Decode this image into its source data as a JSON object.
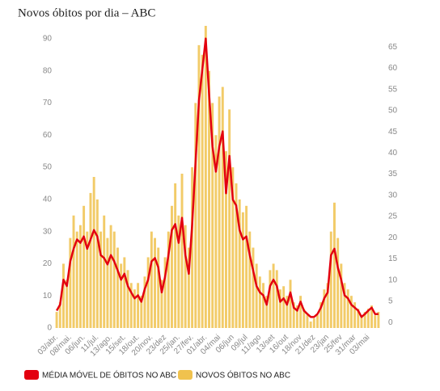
{
  "chart_data": {
    "type": "bar_line",
    "title": "Novos óbitos por dia – ABC",
    "categories": [
      "03/abr.",
      null,
      null,
      null,
      "08/mai.",
      null,
      null,
      null,
      "06/jun.",
      null,
      null,
      null,
      "11/jul.",
      null,
      null,
      null,
      "13/ago.",
      null,
      null,
      null,
      "15/set.",
      null,
      null,
      null,
      "18/out.",
      null,
      null,
      null,
      "20/nov.",
      null,
      null,
      null,
      "23/dez",
      null,
      null,
      null,
      "25/jan.",
      null,
      null,
      null,
      "27/fev.",
      null,
      null,
      null,
      "01/abr.",
      null,
      null,
      null,
      "04/mai",
      null,
      null,
      null,
      "06/jun",
      null,
      null,
      null,
      "09/jul",
      null,
      null,
      null,
      "11/ago",
      null,
      null,
      null,
      "13/set",
      null,
      null,
      null,
      "16/out",
      null,
      null,
      null,
      "18/nov",
      null,
      null,
      null,
      "21/dez",
      null,
      null,
      null,
      "23/jan",
      null,
      null,
      null,
      "25/fev",
      null,
      null,
      null,
      "31/mar",
      null,
      null,
      null,
      "03/mai",
      null,
      null,
      null
    ],
    "series": [
      {
        "name": "MÉDIA MÓVEL DE ÓBITOS NO ABC",
        "color": "#e3000f",
        "axis": "y2",
        "values": [
          2.8,
          4.2,
          10.1,
          8.6,
          14.4,
          17.4,
          19.6,
          18.8,
          20.3,
          17.4,
          19.6,
          21.8,
          20.3,
          15.9,
          15.2,
          13.7,
          15.9,
          14.4,
          12.3,
          10.1,
          11.5,
          8.6,
          7.1,
          5.7,
          6.4,
          4.9,
          7.9,
          10.1,
          14.4,
          15.2,
          13,
          7.1,
          10.8,
          15.9,
          21.8,
          23.2,
          18.8,
          24.7,
          15.9,
          11.5,
          23.2,
          37.8,
          52.4,
          59.7,
          67,
          53.9,
          41.5,
          35.6,
          41.5,
          45.1,
          30.5,
          39.3,
          29,
          27.6,
          21.8,
          19.6,
          20.3,
          15.9,
          12.3,
          8.6,
          7.1,
          6.4,
          4.2,
          8.6,
          10.1,
          8.6,
          4.9,
          5.7,
          4.2,
          7.1,
          3.5,
          2.8,
          4.9,
          2.8,
          2,
          1.3,
          1.3,
          2,
          3.5,
          5.7,
          7.1,
          15.9,
          17.4,
          13,
          10.1,
          6.4,
          5.7,
          4.2,
          3.5,
          2.8,
          1.3,
          2,
          2.8,
          3.5,
          2,
          2
        ]
      },
      {
        "name": "NOVOS ÓBITOS NO ABC",
        "color": "#f0c24e",
        "axis": "y",
        "values": [
          5,
          8,
          20,
          15,
          28,
          35,
          30,
          32,
          38,
          30,
          42,
          47,
          40,
          30,
          35,
          28,
          32,
          30,
          25,
          20,
          22,
          18,
          14,
          12,
          14,
          10,
          16,
          22,
          30,
          28,
          25,
          15,
          22,
          30,
          38,
          45,
          35,
          48,
          32,
          25,
          50,
          70,
          88,
          85,
          94,
          80,
          70,
          60,
          72,
          75,
          55,
          68,
          50,
          45,
          40,
          36,
          38,
          30,
          25,
          20,
          16,
          14,
          10,
          18,
          20,
          18,
          12,
          13,
          10,
          15,
          8,
          7,
          10,
          6,
          4,
          2,
          3,
          4,
          8,
          12,
          14,
          30,
          39,
          28,
          20,
          14,
          12,
          10,
          8,
          6,
          4,
          5,
          6,
          7,
          4,
          5
        ]
      }
    ],
    "ylim": [
      0,
      94
    ],
    "yticks": [
      0,
      10,
      20,
      30,
      40,
      50,
      60,
      70,
      80,
      90
    ],
    "y2lim": [
      -1.3,
      70
    ],
    "y2ticks": [
      0,
      5,
      10,
      15,
      20,
      25,
      30,
      35,
      40,
      45,
      50,
      55,
      60,
      65
    ]
  }
}
